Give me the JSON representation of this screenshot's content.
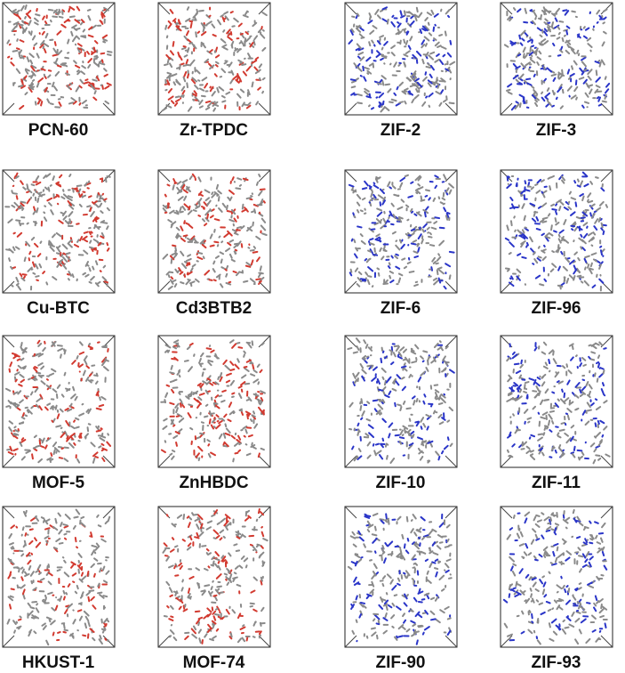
{
  "figure": {
    "structures": [
      {
        "name": "PCN-60",
        "scheme": "red"
      },
      {
        "name": "Zr-TPDC",
        "scheme": "red"
      },
      {
        "name": "ZIF-2",
        "scheme": "blue"
      },
      {
        "name": "ZIF-3",
        "scheme": "blue"
      },
      {
        "name": "Cu-BTC",
        "scheme": "red"
      },
      {
        "name": "Cd3BTB2",
        "scheme": "red"
      },
      {
        "name": "ZIF-6",
        "scheme": "blue"
      },
      {
        "name": "ZIF-96",
        "scheme": "blue"
      },
      {
        "name": "MOF-5",
        "scheme": "red"
      },
      {
        "name": "ZnHBDC",
        "scheme": "red"
      },
      {
        "name": "ZIF-10",
        "scheme": "blue"
      },
      {
        "name": "ZIF-11",
        "scheme": "blue"
      },
      {
        "name": "HKUST-1",
        "scheme": "red"
      },
      {
        "name": "MOF-74",
        "scheme": "red"
      },
      {
        "name": "ZIF-90",
        "scheme": "blue"
      },
      {
        "name": "ZIF-93",
        "scheme": "blue"
      }
    ],
    "colors": {
      "red": "#d23a30",
      "blue": "#2a35c8",
      "carbon": "#8a8a8a",
      "frame": "#222222"
    }
  }
}
